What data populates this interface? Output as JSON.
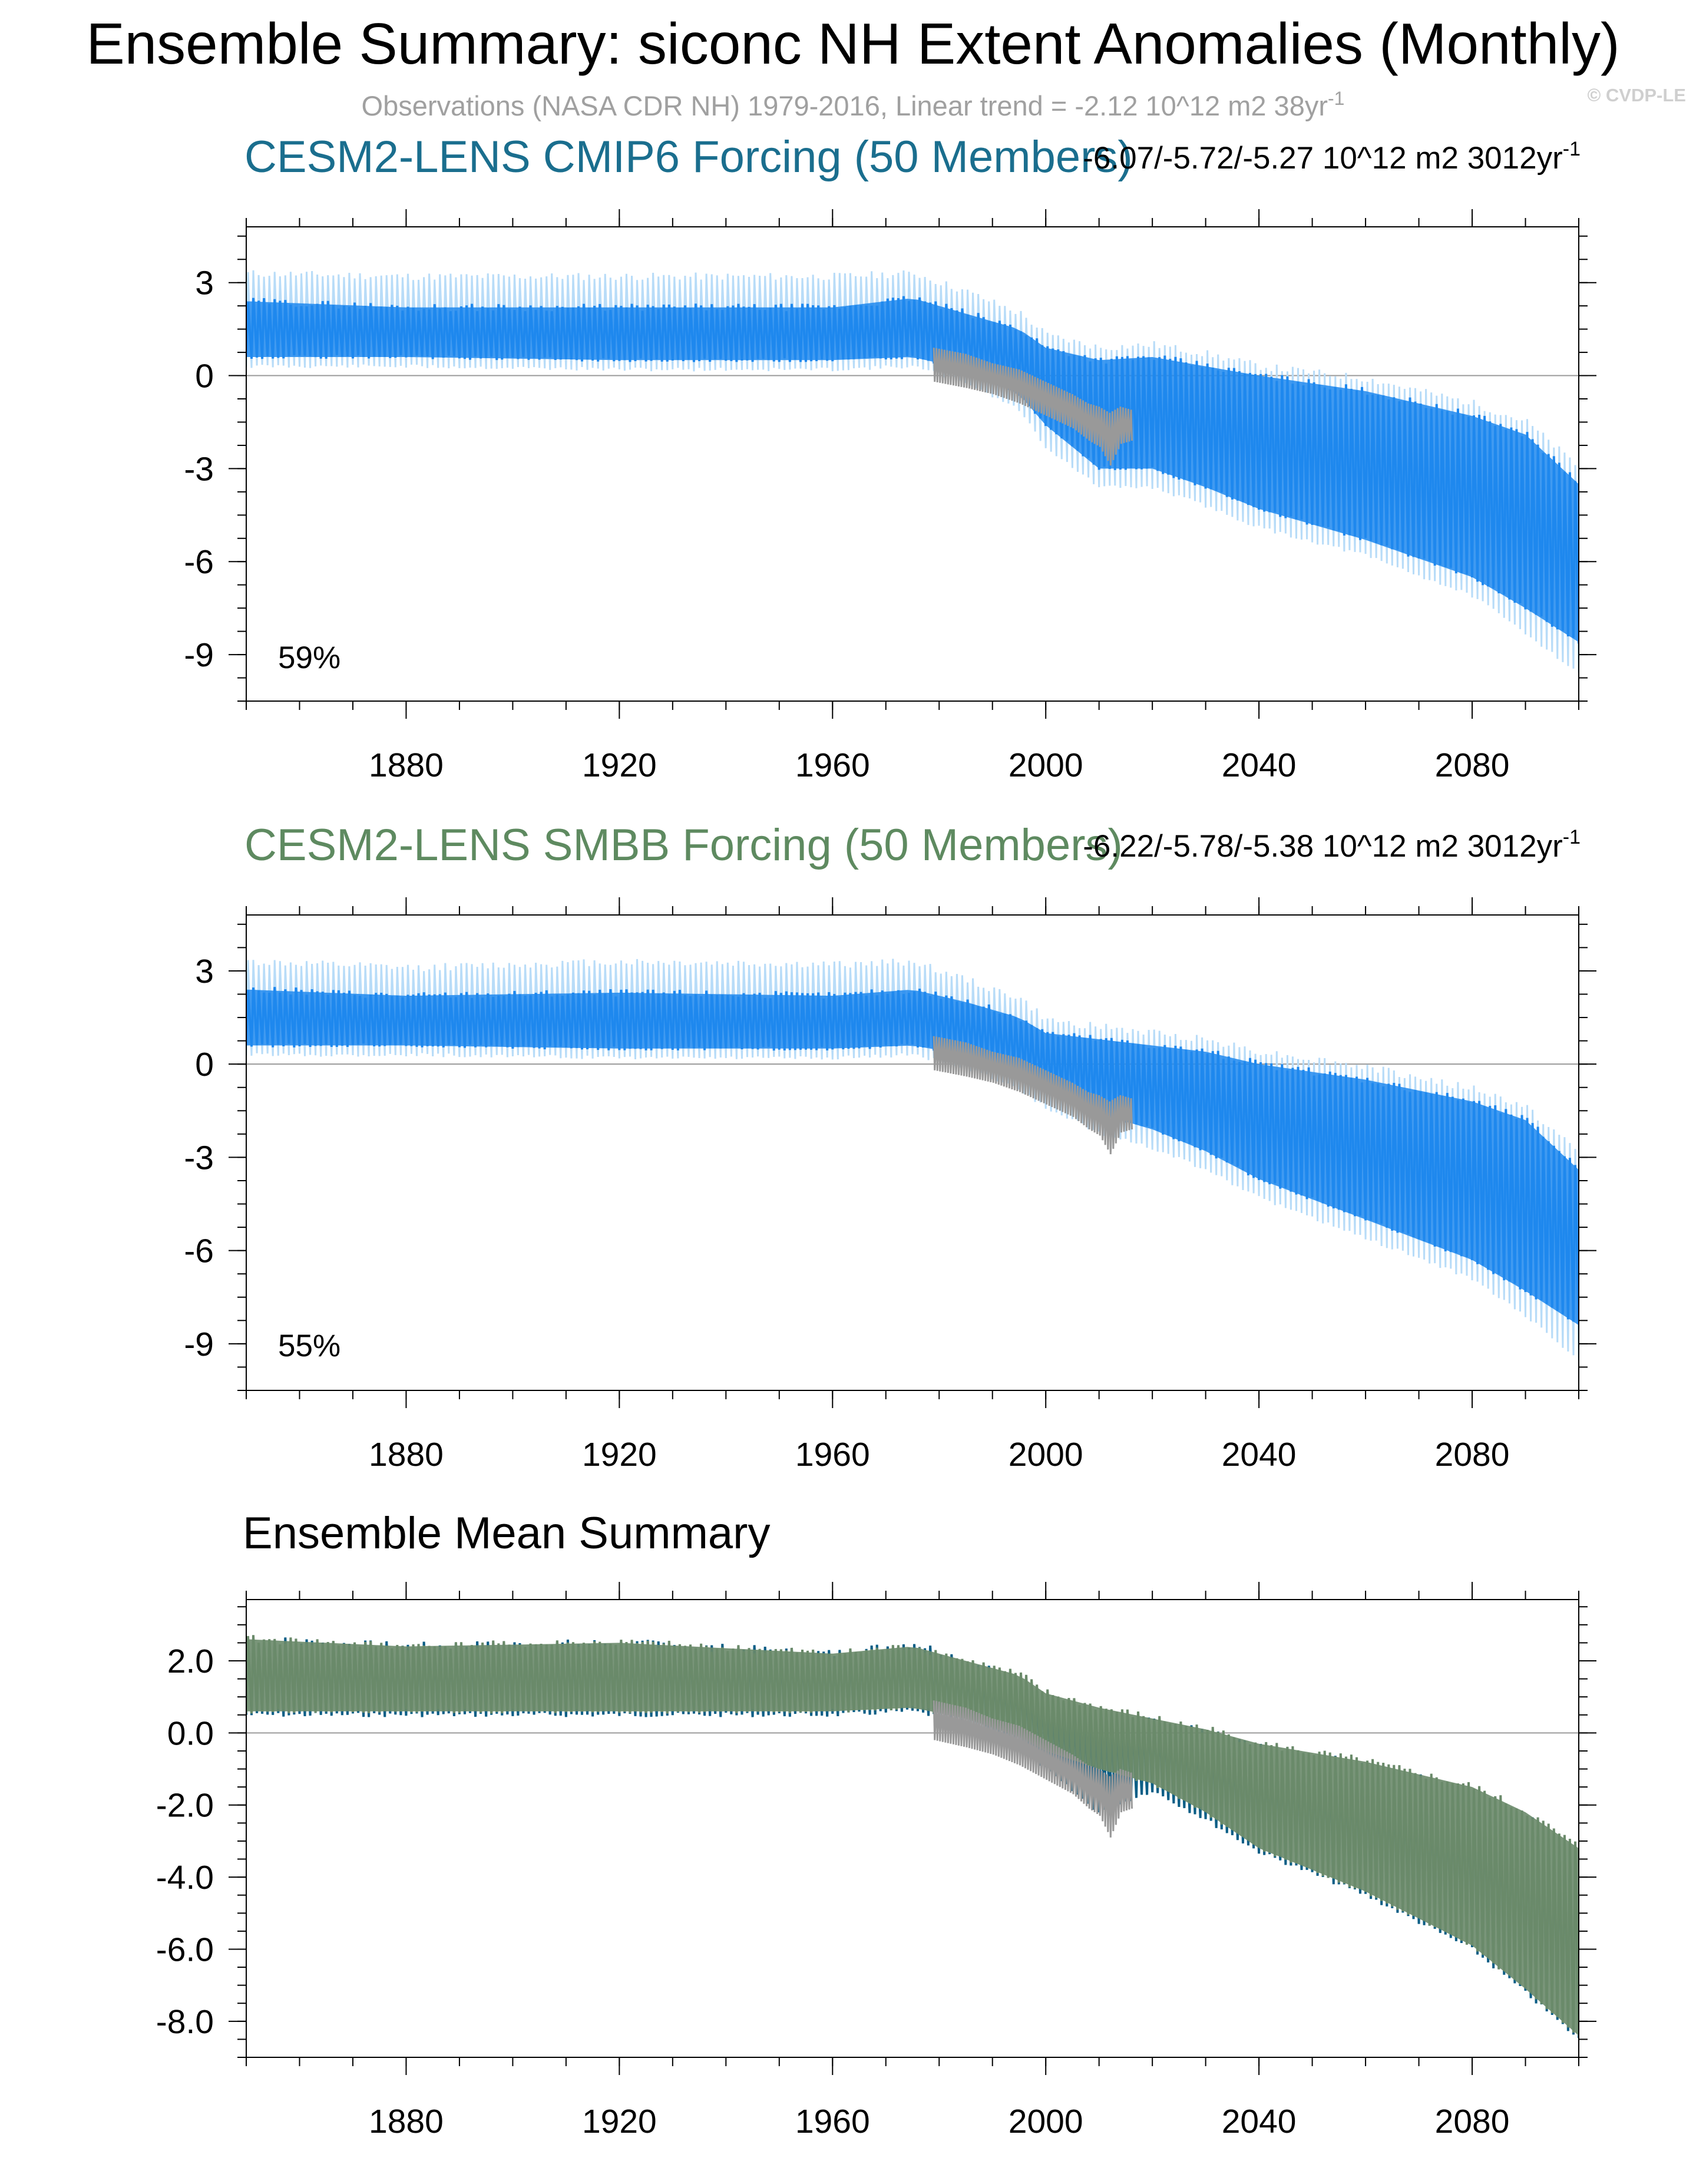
{
  "figure": {
    "title": "Ensemble Summary: siconc NH Extent Anomalies (Monthly)",
    "subtitle": "Observations (NASA CDR NH) 1979-2016, Linear trend = -2.12 10^12 m2 38yr",
    "subtitle_sup": "-1",
    "credit": "© CVDP-LE"
  },
  "colors": {
    "cmip6_title": "#1a6e8e",
    "smbb_title": "#5e8a60",
    "spread_fill": "#1e88ee",
    "spread_light": "#b8dcf8",
    "observations": "#999999",
    "cmip6_mean": "#0b5e86",
    "smbb_mean": "#6a8a6a"
  },
  "chart_data": [
    {
      "type": "area",
      "title": "CESM2-LENS CMIP6 Forcing (50 Members)",
      "trend_text": "-6.07/-5.72/-5.27 10^12 m2 3012yr",
      "trend_sup": "-1",
      "percent_label": "59%",
      "xlim": [
        1850,
        2100
      ],
      "ylim": [
        -10.5,
        4.8
      ],
      "x_ticks": [
        1880,
        1920,
        1960,
        2000,
        2040,
        2080
      ],
      "x_tick_labels": [
        "1880",
        "1920",
        "1960",
        "2000",
        "2040",
        "2080"
      ],
      "y_ticks": [
        3,
        0,
        -3,
        -6,
        -9
      ],
      "y_tick_labels": [
        "3",
        "0",
        "-3",
        "-6",
        "-9"
      ],
      "x": [
        1850,
        1880,
        1920,
        1960,
        1975,
        1985,
        1995,
        2000,
        2010,
        2020,
        2030,
        2040,
        2060,
        2080,
        2090,
        2100
      ],
      "series": [
        {
          "name": "member spread top",
          "values": [
            2.4,
            2.2,
            2.2,
            2.2,
            2.5,
            2.0,
            1.5,
            0.9,
            0.5,
            0.6,
            0.3,
            0.0,
            -0.5,
            -1.3,
            -1.9,
            -3.5
          ]
        },
        {
          "name": "member spread bottom",
          "values": [
            0.6,
            0.6,
            0.5,
            0.5,
            0.6,
            0.2,
            -0.6,
            -1.6,
            -3.0,
            -3.0,
            -3.6,
            -4.3,
            -5.3,
            -6.5,
            -7.5,
            -8.6
          ]
        },
        {
          "name": "member extreme top",
          "values": [
            3.3,
            3.2,
            3.2,
            3.2,
            3.3,
            2.7,
            2.0,
            1.3,
            0.9,
            1.0,
            0.7,
            0.3,
            -0.1,
            -0.9,
            -1.5,
            -3.0
          ]
        },
        {
          "name": "member extreme bottom",
          "values": [
            0.3,
            0.3,
            0.2,
            0.2,
            0.3,
            -0.2,
            -1.1,
            -2.3,
            -3.6,
            -3.6,
            -4.2,
            -4.9,
            -5.8,
            -7.1,
            -8.3,
            -9.6
          ]
        }
      ],
      "observations": {
        "name": "Observations (NASA CDR NH)",
        "x": [
          1979,
          1985,
          1990,
          1995,
          2000,
          2005,
          2008,
          2010,
          2012,
          2014,
          2016
        ],
        "top": [
          0.9,
          0.7,
          0.4,
          0.2,
          -0.2,
          -0.6,
          -0.9,
          -1.0,
          -1.2,
          -1.0,
          -1.1
        ],
        "bottom": [
          -0.2,
          -0.4,
          -0.6,
          -0.9,
          -1.3,
          -1.7,
          -2.1,
          -2.3,
          -2.9,
          -2.2,
          -2.1
        ]
      }
    },
    {
      "type": "area",
      "title": "CESM2-LENS SMBB Forcing (50 Members)",
      "trend_text": "-6.22/-5.78/-5.38 10^12 m2 3012yr",
      "trend_sup": "-1",
      "percent_label": "55%",
      "xlim": [
        1850,
        2100
      ],
      "ylim": [
        -10.5,
        4.8
      ],
      "x_ticks": [
        1880,
        1920,
        1960,
        2000,
        2040,
        2080
      ],
      "x_tick_labels": [
        "1880",
        "1920",
        "1960",
        "2000",
        "2040",
        "2080"
      ],
      "y_ticks": [
        3,
        0,
        -3,
        -6,
        -9
      ],
      "y_tick_labels": [
        "3",
        "0",
        "-3",
        "-6",
        "-9"
      ],
      "x": [
        1850,
        1880,
        1920,
        1960,
        1975,
        1985,
        1995,
        2000,
        2010,
        2020,
        2030,
        2040,
        2060,
        2080,
        2090,
        2100
      ],
      "series": [
        {
          "name": "member spread top",
          "values": [
            2.4,
            2.2,
            2.3,
            2.2,
            2.4,
            2.0,
            1.5,
            1.0,
            0.8,
            0.6,
            0.4,
            0.0,
            -0.5,
            -1.2,
            -1.8,
            -3.4
          ]
        },
        {
          "name": "member spread bottom",
          "values": [
            0.6,
            0.6,
            0.5,
            0.5,
            0.6,
            0.3,
            -0.3,
            -0.9,
            -1.6,
            -2.1,
            -2.8,
            -3.7,
            -5.0,
            -6.3,
            -7.3,
            -8.4
          ]
        },
        {
          "name": "member extreme top",
          "values": [
            3.3,
            3.1,
            3.3,
            3.2,
            3.3,
            2.7,
            2.1,
            1.4,
            1.2,
            1.0,
            0.8,
            0.4,
            -0.1,
            -0.8,
            -1.4,
            -2.9
          ]
        },
        {
          "name": "member extreme bottom",
          "values": [
            0.3,
            0.3,
            0.2,
            0.2,
            0.3,
            -0.1,
            -0.8,
            -1.4,
            -2.2,
            -2.7,
            -3.4,
            -4.3,
            -5.6,
            -6.9,
            -8.1,
            -9.5
          ]
        }
      ],
      "observations": {
        "name": "Observations (NASA CDR NH)",
        "x": [
          1979,
          1985,
          1990,
          1995,
          2000,
          2005,
          2008,
          2010,
          2012,
          2014,
          2016
        ],
        "top": [
          0.9,
          0.7,
          0.4,
          0.2,
          -0.2,
          -0.6,
          -0.9,
          -1.0,
          -1.2,
          -1.0,
          -1.1
        ],
        "bottom": [
          -0.2,
          -0.4,
          -0.6,
          -0.9,
          -1.3,
          -1.7,
          -2.1,
          -2.3,
          -2.9,
          -2.2,
          -2.1
        ]
      }
    },
    {
      "type": "area",
      "title": "Ensemble Mean Summary",
      "xlim": [
        1850,
        2100
      ],
      "ylim": [
        -9.0,
        3.7
      ],
      "x_ticks": [
        1880,
        1920,
        1960,
        2000,
        2040,
        2080
      ],
      "x_tick_labels": [
        "1880",
        "1920",
        "1960",
        "2000",
        "2040",
        "2080"
      ],
      "y_ticks": [
        2,
        0,
        -2,
        -4,
        -6,
        -8
      ],
      "y_tick_labels": [
        "2.0",
        "0.0",
        "-2.0",
        "-4.0",
        "-6.0",
        "-8.0"
      ],
      "x": [
        1850,
        1880,
        1920,
        1960,
        1975,
        1985,
        1995,
        2000,
        2010,
        2020,
        2030,
        2040,
        2060,
        2080,
        2090,
        2100
      ],
      "series": [
        {
          "name": "CESM2-LENS CMIP6 mean top",
          "values": [
            2.6,
            2.4,
            2.5,
            2.2,
            2.5,
            2.0,
            1.5,
            0.9,
            0.4,
            0.3,
            0.0,
            -0.4,
            -0.9,
            -1.6,
            -2.3,
            -3.3
          ]
        },
        {
          "name": "CESM2-LENS CMIP6 mean bottom",
          "values": [
            0.5,
            0.5,
            0.5,
            0.5,
            0.6,
            0.3,
            -0.3,
            -1.0,
            -2.2,
            -1.6,
            -2.4,
            -3.3,
            -4.5,
            -6.0,
            -7.2,
            -8.5
          ]
        },
        {
          "name": "CESM2-LENS SMBB mean top",
          "values": [
            2.6,
            2.4,
            2.5,
            2.2,
            2.4,
            2.0,
            1.6,
            1.1,
            0.7,
            0.4,
            0.1,
            -0.3,
            -0.8,
            -1.5,
            -2.2,
            -3.2
          ]
        },
        {
          "name": "CESM2-LENS SMBB mean bottom",
          "values": [
            0.6,
            0.6,
            0.6,
            0.6,
            0.7,
            0.4,
            -0.1,
            -0.5,
            -1.0,
            -1.4,
            -2.2,
            -3.2,
            -4.4,
            -5.9,
            -7.1,
            -8.4
          ]
        }
      ],
      "observations": {
        "name": "Observations (NASA CDR NH)",
        "x": [
          1979,
          1985,
          1990,
          1995,
          2000,
          2005,
          2008,
          2010,
          2012,
          2014,
          2016
        ],
        "top": [
          0.9,
          0.7,
          0.4,
          0.2,
          -0.2,
          -0.6,
          -0.9,
          -1.0,
          -1.2,
          -1.0,
          -1.1
        ],
        "bottom": [
          -0.2,
          -0.4,
          -0.6,
          -0.9,
          -1.3,
          -1.7,
          -2.1,
          -2.3,
          -2.9,
          -2.2,
          -2.1
        ]
      }
    }
  ]
}
